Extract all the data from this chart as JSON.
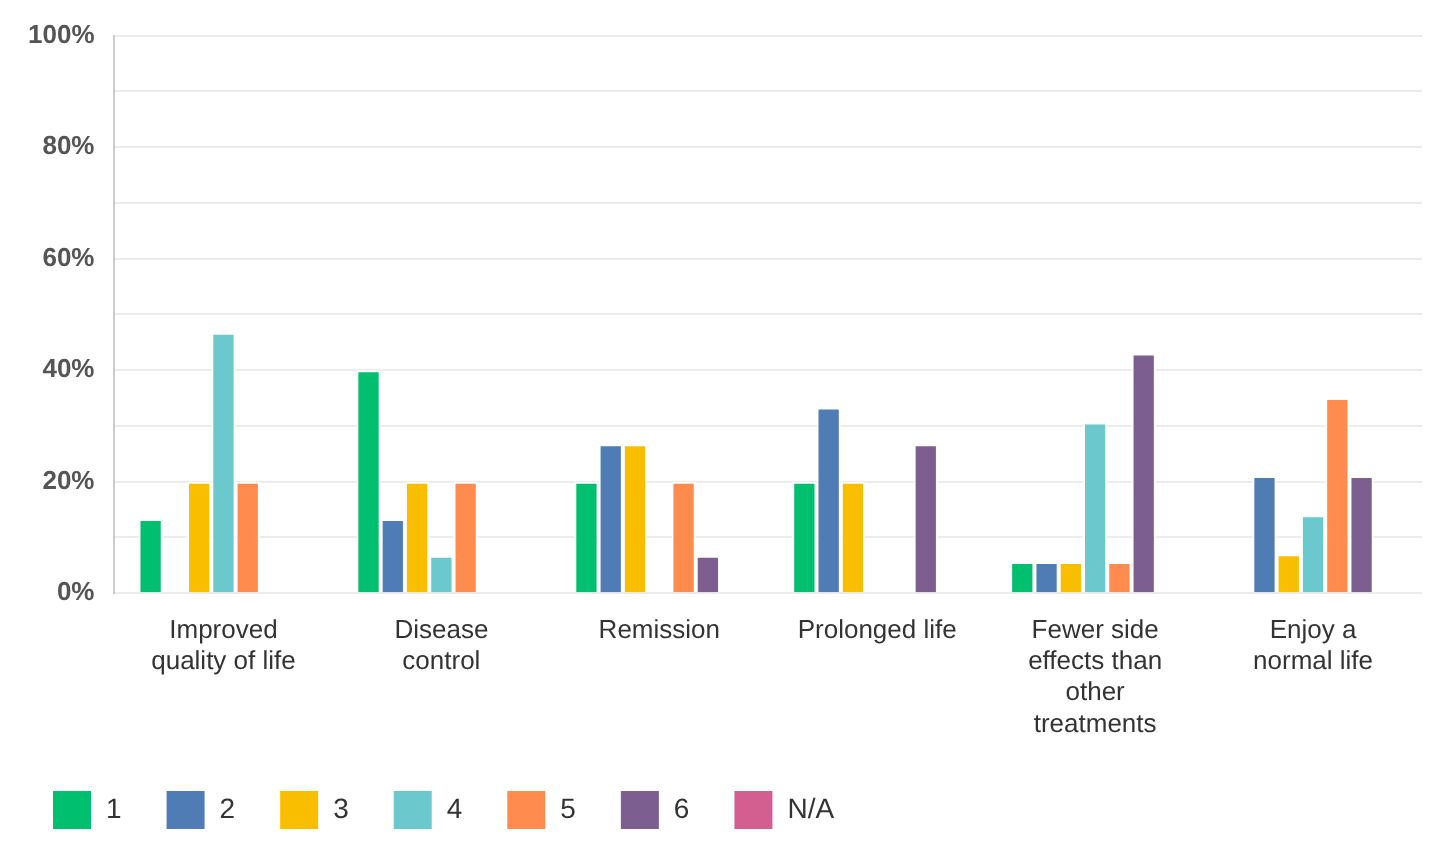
{
  "chart_data": {
    "type": "bar",
    "categories": [
      "Improved quality of life",
      "Disease control",
      "Remission",
      "Prolonged life",
      "Fewer side effects than other treatments",
      "Enjoy a normal life"
    ],
    "series": [
      {
        "name": "1",
        "color": "#00bf6f",
        "values": [
          13.3,
          40,
          20,
          20,
          5.6,
          0
        ]
      },
      {
        "name": "2",
        "color": "#507cb6",
        "values": [
          0,
          13.3,
          26.7,
          33.3,
          5.6,
          21
        ]
      },
      {
        "name": "3",
        "color": "#f9be00",
        "values": [
          20,
          20,
          26.7,
          20,
          5.6,
          7
        ]
      },
      {
        "name": "4",
        "color": "#6bc8cd",
        "values": [
          46.7,
          6.7,
          0,
          0,
          30.6,
          14
        ]
      },
      {
        "name": "5",
        "color": "#ff8b4f",
        "values": [
          20,
          20,
          20,
          0,
          5.6,
          35
        ]
      },
      {
        "name": "6",
        "color": "#7d5e90",
        "values": [
          0,
          0,
          6.7,
          26.7,
          43,
          21
        ]
      },
      {
        "name": "N/A",
        "color": "#d25f90",
        "values": [
          0,
          0,
          0,
          0,
          0,
          0
        ]
      }
    ],
    "ylim": [
      0,
      100
    ],
    "yticks": [
      {
        "value": 0,
        "label": "0%"
      },
      {
        "value": 10,
        "label": null
      },
      {
        "value": 20,
        "label": "20%"
      },
      {
        "value": 30,
        "label": null
      },
      {
        "value": 40,
        "label": "40%"
      },
      {
        "value": 50,
        "label": null
      },
      {
        "value": 60,
        "label": "60%"
      },
      {
        "value": 70,
        "label": null
      },
      {
        "value": 80,
        "label": "80%"
      },
      {
        "value": 90,
        "label": null
      },
      {
        "value": 100,
        "label": "100%"
      }
    ],
    "grid": "y",
    "legend": "bottom left"
  }
}
